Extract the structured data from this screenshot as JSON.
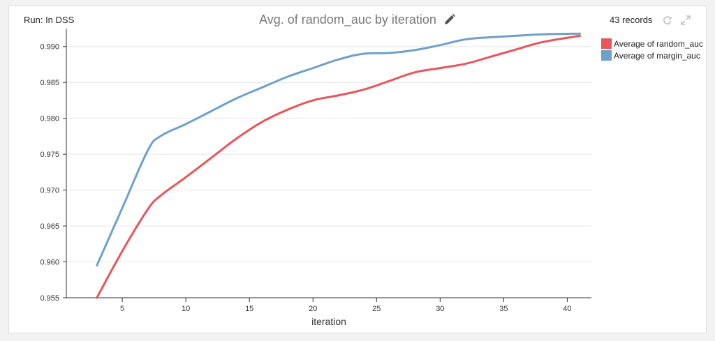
{
  "header": {
    "run_label": "Run: In DSS",
    "records": "43 records",
    "icons": [
      "pencil-icon",
      "refresh-icon",
      "expand-icon"
    ]
  },
  "colors": {
    "random": "#e8555a",
    "margin": "#6ea0cb",
    "grid": "#e6e6e6",
    "axis": "#333333"
  },
  "chart_data": {
    "type": "line",
    "title": "Avg. of random_auc by iteration",
    "xlabel": "iteration",
    "ylabel": "",
    "xlim": [
      0.6,
      41.9
    ],
    "ylim": [
      0.955,
      0.9925
    ],
    "xticks": [
      "5",
      "10",
      "15",
      "20",
      "25",
      "30",
      "35",
      "40"
    ],
    "yticks": [
      "0.955",
      "0.960",
      "0.965",
      "0.970",
      "0.975",
      "0.980",
      "0.985",
      "0.990"
    ],
    "grid": true,
    "legend_position": "top-right",
    "series": [
      {
        "name": "Average of random_auc",
        "x": [
          3,
          5,
          7,
          8,
          10,
          12,
          14,
          16,
          18,
          20,
          22,
          24,
          26,
          28,
          30,
          32,
          34,
          36,
          38,
          41
        ],
        "y": [
          0.955,
          0.9615,
          0.9673,
          0.9692,
          0.9718,
          0.9745,
          0.9772,
          0.9795,
          0.9812,
          0.9825,
          0.9832,
          0.984,
          0.9852,
          0.9864,
          0.987,
          0.9876,
          0.9886,
          0.9896,
          0.9906,
          0.9915
        ]
      },
      {
        "name": "Average of margin_auc",
        "x": [
          3,
          5,
          7,
          8,
          10,
          12,
          14,
          16,
          18,
          20,
          22,
          24,
          26,
          28,
          30,
          32,
          34,
          36,
          38,
          41
        ],
        "y": [
          0.9595,
          0.9675,
          0.9755,
          0.9775,
          0.9792,
          0.981,
          0.9828,
          0.9843,
          0.9858,
          0.987,
          0.9882,
          0.989,
          0.9891,
          0.9895,
          0.9902,
          0.991,
          0.9913,
          0.9915,
          0.9917,
          0.9918
        ]
      }
    ]
  }
}
